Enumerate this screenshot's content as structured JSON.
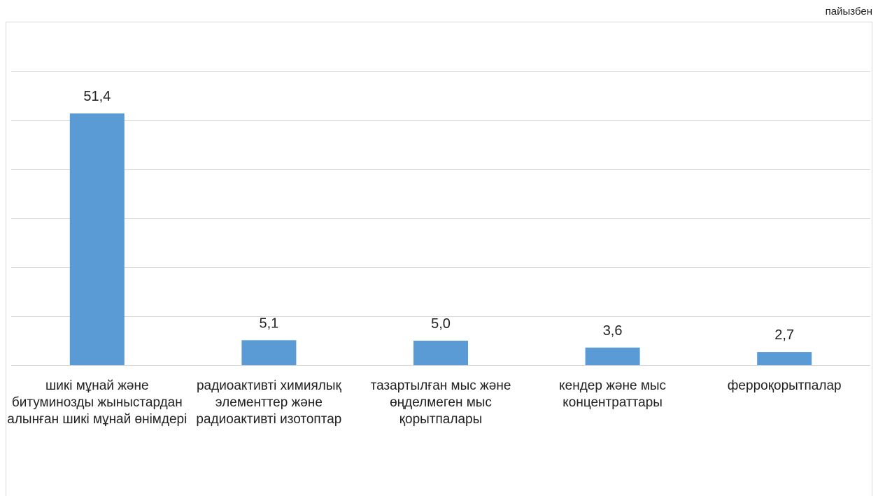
{
  "unit_label": "пайызбен",
  "colors": {
    "bar": "#5b9bd5",
    "grid": "#d9d9d9",
    "frame": "#d9d9d9"
  },
  "chart_data": {
    "type": "bar",
    "title": "",
    "xlabel": "",
    "ylabel": "",
    "ylim": [
      0,
      60
    ],
    "grid": true,
    "categories": [
      "шикі мұнай және битуминозды жыныстардан алынған шикі мұнай өнімдері",
      "радиоактивті химиялық элементтер және радиоактивті изотоптар",
      "тазартылған мыс және өңделмеген мыс қорытпалары",
      "кендер және мыс концентраттары",
      "ферроқорытпалар"
    ],
    "values": [
      51.4,
      5.1,
      5.0,
      3.6,
      2.7
    ],
    "data_labels": [
      "51,4",
      "5,1",
      "5,0",
      "3,6",
      "2,7"
    ]
  }
}
